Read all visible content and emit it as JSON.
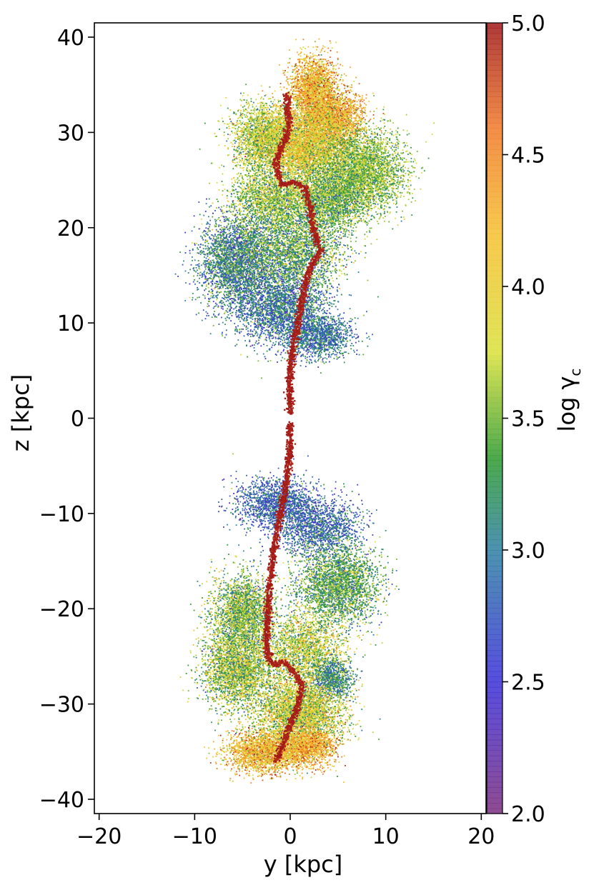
{
  "chart_data": {
    "type": "scatter",
    "title": "",
    "xlabel": "y [kpc]",
    "ylabel": "z [kpc]",
    "xlim": [
      -20.5,
      20.5
    ],
    "ylim": [
      -41.5,
      41.5
    ],
    "x_ticks": [
      -20,
      -10,
      0,
      10,
      20
    ],
    "x_tick_labels": [
      "−20",
      "−10",
      "0",
      "10",
      "20"
    ],
    "y_ticks": [
      -40,
      -30,
      -20,
      -10,
      0,
      10,
      20,
      30,
      40
    ],
    "y_tick_labels": [
      "−40",
      "−30",
      "−20",
      "−10",
      "0",
      "10",
      "20",
      "30",
      "40"
    ],
    "grid": false,
    "colorbar": {
      "label": "log γ",
      "label_subscript": "c",
      "range": [
        2.0,
        5.0
      ],
      "ticks": [
        2.0,
        2.5,
        3.0,
        3.5,
        4.0,
        4.5,
        5.0
      ],
      "tick_labels": [
        "2.0",
        "2.5",
        "3.0",
        "3.5",
        "4.0",
        "4.5",
        "5.0"
      ],
      "colormap_stops": [
        {
          "value": 2.0,
          "color": "#7b2d7e"
        },
        {
          "value": 2.5,
          "color": "#3a2fd6"
        },
        {
          "value": 3.0,
          "color": "#2e7fa3"
        },
        {
          "value": 3.35,
          "color": "#2e9a2e"
        },
        {
          "value": 3.75,
          "color": "#d9e03a"
        },
        {
          "value": 4.2,
          "color": "#f5c030"
        },
        {
          "value": 4.6,
          "color": "#f07a2a"
        },
        {
          "value": 5.0,
          "color": "#a01818"
        }
      ]
    },
    "jet_spine": [
      [
        0.0,
        0.5
      ],
      [
        0.0,
        2.0
      ],
      [
        -0.1,
        4.0
      ],
      [
        0.1,
        6.0
      ],
      [
        0.4,
        8.0
      ],
      [
        0.8,
        10.0
      ],
      [
        1.2,
        12.0
      ],
      [
        1.6,
        14.0
      ],
      [
        2.2,
        16.0
      ],
      [
        3.2,
        17.5
      ],
      [
        2.4,
        20.0
      ],
      [
        2.0,
        22.5
      ],
      [
        1.5,
        24.2
      ],
      [
        0.5,
        24.8
      ],
      [
        -0.8,
        24.5
      ],
      [
        -1.2,
        25.5
      ],
      [
        -1.5,
        26.5
      ],
      [
        -1.2,
        27.5
      ],
      [
        -0.9,
        28.5
      ],
      [
        -0.4,
        29.5
      ],
      [
        -0.2,
        30.5
      ],
      [
        -0.1,
        31.5
      ],
      [
        -0.3,
        32.5
      ],
      [
        -0.2,
        33.5
      ],
      [
        -0.5,
        34.0
      ]
    ],
    "counter_jet_spine": [
      [
        0.0,
        -0.5
      ],
      [
        0.0,
        -2.0
      ],
      [
        -0.1,
        -4.0
      ],
      [
        -0.3,
        -6.0
      ],
      [
        -0.6,
        -8.0
      ],
      [
        -1.0,
        -10.0
      ],
      [
        -1.4,
        -12.0
      ],
      [
        -1.7,
        -14.0
      ],
      [
        -2.0,
        -16.0
      ],
      [
        -2.2,
        -18.0
      ],
      [
        -2.3,
        -20.0
      ],
      [
        -2.4,
        -22.0
      ],
      [
        -2.5,
        -24.0
      ],
      [
        -2.2,
        -25.5
      ],
      [
        -1.6,
        -26.0
      ],
      [
        -0.8,
        -25.5
      ],
      [
        0.3,
        -26.5
      ],
      [
        1.2,
        -28.0
      ],
      [
        1.0,
        -29.5
      ],
      [
        0.5,
        -31.0
      ],
      [
        -0.3,
        -33.0
      ],
      [
        -1.0,
        -35.0
      ],
      [
        -1.5,
        -36.0
      ]
    ],
    "particle_clouds": [
      {
        "cx": 2.5,
        "cz": 34.5,
        "sy": 1.8,
        "sz": 2.5,
        "n": 2200,
        "mean": 4.2,
        "sd": 0.35
      },
      {
        "cx": 4.5,
        "cz": 31.5,
        "sy": 2.3,
        "sz": 2.0,
        "n": 2000,
        "mean": 4.3,
        "sd": 0.35
      },
      {
        "cx": -2.5,
        "cz": 29.5,
        "sy": 2.5,
        "sz": 2.5,
        "n": 2500,
        "mean": 3.7,
        "sd": 0.35
      },
      {
        "cx": 2.0,
        "cz": 28.5,
        "sy": 3.0,
        "sz": 2.7,
        "n": 3500,
        "mean": 3.95,
        "sd": 0.35
      },
      {
        "cx": 7.5,
        "cz": 26.0,
        "sy": 3.2,
        "sz": 3.0,
        "n": 3500,
        "mean": 3.55,
        "sd": 0.3
      },
      {
        "cx": 4.0,
        "cz": 23.0,
        "sy": 3.0,
        "sz": 2.5,
        "n": 2500,
        "mean": 3.45,
        "sd": 0.35
      },
      {
        "cx": -2.0,
        "cz": 23.0,
        "sy": 3.0,
        "sz": 2.5,
        "n": 2000,
        "mean": 3.6,
        "sd": 0.35
      },
      {
        "cx": -5.5,
        "cz": 16.5,
        "sy": 2.8,
        "sz": 3.3,
        "n": 3200,
        "mean": 3.1,
        "sd": 0.4
      },
      {
        "cx": 0.5,
        "cz": 17.5,
        "sy": 3.5,
        "sz": 3.0,
        "n": 2500,
        "mean": 3.35,
        "sd": 0.4
      },
      {
        "cx": -1.0,
        "cz": 11.5,
        "sy": 3.5,
        "sz": 2.8,
        "n": 2600,
        "mean": 2.95,
        "sd": 0.35
      },
      {
        "cx": 3.0,
        "cz": 8.5,
        "sy": 2.5,
        "sz": 1.6,
        "n": 1200,
        "mean": 2.95,
        "sd": 0.3
      },
      {
        "cx": -1.5,
        "cz": -9.0,
        "sy": 3.0,
        "sz": 2.0,
        "n": 1500,
        "mean": 2.8,
        "sd": 0.3
      },
      {
        "cx": 3.0,
        "cz": -11.5,
        "sy": 3.0,
        "sz": 2.2,
        "n": 1500,
        "mean": 2.85,
        "sd": 0.3
      },
      {
        "cx": 5.0,
        "cz": -17.5,
        "sy": 3.0,
        "sz": 3.0,
        "n": 3000,
        "mean": 3.35,
        "sd": 0.35
      },
      {
        "cx": -5.0,
        "cz": -20.5,
        "sy": 2.3,
        "sz": 3.0,
        "n": 2500,
        "mean": 3.5,
        "sd": 0.4
      },
      {
        "cx": -5.5,
        "cz": -26.5,
        "sy": 2.6,
        "sz": 2.8,
        "n": 2800,
        "mean": 3.6,
        "sd": 0.4
      },
      {
        "cx": 1.5,
        "cz": -24.5,
        "sy": 3.0,
        "sz": 3.0,
        "n": 2200,
        "mean": 3.7,
        "sd": 0.4
      },
      {
        "cx": 4.5,
        "cz": -27.5,
        "sy": 1.5,
        "sz": 1.5,
        "n": 800,
        "mean": 3.1,
        "sd": 0.3
      },
      {
        "cx": 1.0,
        "cz": -31.0,
        "sy": 3.3,
        "sz": 2.5,
        "n": 3500,
        "mean": 3.75,
        "sd": 0.4
      },
      {
        "cx": -2.5,
        "cz": -35.0,
        "sy": 3.0,
        "sz": 1.6,
        "n": 2300,
        "mean": 4.2,
        "sd": 0.35
      },
      {
        "cx": 2.0,
        "cz": -34.5,
        "sy": 2.0,
        "sz": 1.5,
        "n": 1200,
        "mean": 4.3,
        "sd": 0.3
      }
    ]
  }
}
